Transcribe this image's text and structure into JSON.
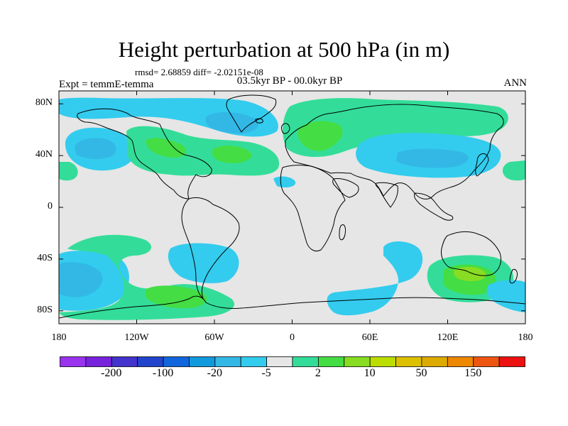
{
  "figure": {
    "title": "Height perturbation at 500 hPa (in m)",
    "stats_line": "rmsd= 2.68859 diff= -2.02151e-08",
    "left_label": "Expt = temmE-temma",
    "center_label": "03.5kyr BP - 00.0kyr BP",
    "right_label": "ANN"
  },
  "map": {
    "projection": "cylindrical-equidistant",
    "lon_range": [
      -180,
      180
    ],
    "lat_range": [
      -90,
      90
    ],
    "background_color": "#e6e6e6",
    "lat_ticks": [
      {
        "value": 80,
        "label": "80N"
      },
      {
        "value": 40,
        "label": "40N"
      },
      {
        "value": 0,
        "label": "0"
      },
      {
        "value": -40,
        "label": "40S"
      },
      {
        "value": -80,
        "label": "80S"
      }
    ],
    "lon_ticks": [
      {
        "value": -180,
        "label": "180"
      },
      {
        "value": -120,
        "label": "120W"
      },
      {
        "value": -60,
        "label": "60W"
      },
      {
        "value": 0,
        "label": "0"
      },
      {
        "value": 60,
        "label": "60E"
      },
      {
        "value": 120,
        "label": "120E"
      },
      {
        "value": 180,
        "label": "180"
      }
    ]
  },
  "colorbar": {
    "colors": [
      "#9933ee",
      "#7722dd",
      "#4433cc",
      "#2244cc",
      "#1166dd",
      "#1199dd",
      "#33b8e6",
      "#33ccee",
      "#e6e6e6",
      "#33dd99",
      "#44dd44",
      "#88dd22",
      "#bbdd00",
      "#ddc000",
      "#ddaa00",
      "#ee8800",
      "#ee5511",
      "#ee1111"
    ],
    "labels": [
      {
        "text": "-200",
        "after_box": 1
      },
      {
        "text": "-100",
        "after_box": 3
      },
      {
        "text": "-20",
        "after_box": 5
      },
      {
        "text": "-5",
        "after_box": 7
      },
      {
        "text": "2",
        "after_box": 9
      },
      {
        "text": "10",
        "after_box": 11
      },
      {
        "text": "50",
        "after_box": 13
      },
      {
        "text": "150",
        "after_box": 15
      }
    ]
  }
}
